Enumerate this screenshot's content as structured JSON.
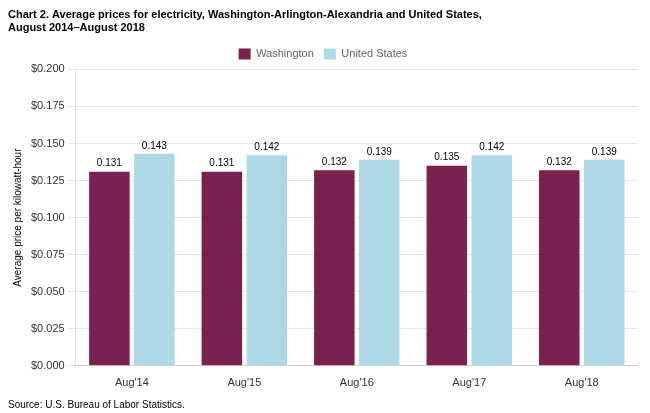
{
  "chart_data": {
    "type": "bar",
    "title": [
      "Chart 2. Average prices for electricity, Washington-Arlington-Alexandria and United States,",
      "August 2014–August 2018"
    ],
    "ylabel": "Average price per kilowatt-hour",
    "source": "Source: U.S. Bureau of Labor Statistics.",
    "categories": [
      "Aug'14",
      "Aug'15",
      "Aug'16",
      "Aug'17",
      "Aug'18"
    ],
    "series": [
      {
        "name": "Washington",
        "color": "#7B2150",
        "values": [
          0.131,
          0.131,
          0.132,
          0.135,
          0.132
        ]
      },
      {
        "name": "United States",
        "color": "#ADD8E6",
        "values": [
          0.143,
          0.142,
          0.139,
          0.142,
          0.139
        ]
      }
    ],
    "ylim": [
      0.0,
      0.2
    ],
    "yticks": [
      {
        "value": 0.0,
        "label": "$0.000"
      },
      {
        "value": 0.025,
        "label": "$0.025"
      },
      {
        "value": 0.05,
        "label": "$0.050"
      },
      {
        "value": 0.075,
        "label": "$0.075"
      },
      {
        "value": 0.1,
        "label": "$0.100"
      },
      {
        "value": 0.125,
        "label": "$0.125"
      },
      {
        "value": 0.15,
        "label": "$0.150"
      },
      {
        "value": 0.175,
        "label": "$0.175"
      },
      {
        "value": 0.2,
        "label": "$0.200"
      }
    ],
    "grid": true,
    "legend": "top",
    "data_labels": true
  }
}
